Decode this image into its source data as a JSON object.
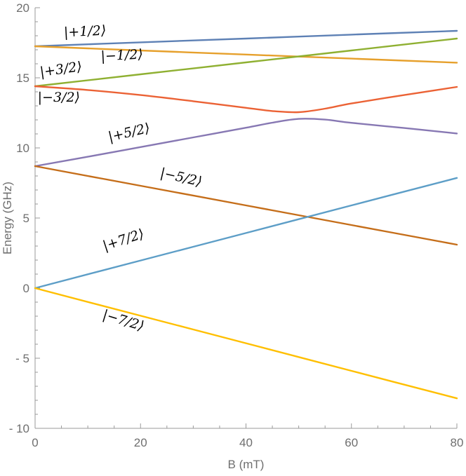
{
  "chart_data": {
    "type": "line",
    "title": "",
    "xlabel": "B (mT)",
    "ylabel": "Energy (GHz)",
    "xlim": [
      0,
      80
    ],
    "ylim": [
      -10,
      20
    ],
    "grid": false,
    "legend": "none",
    "x_ticks": [
      0,
      20,
      40,
      60,
      80
    ],
    "x_tick_labels": [
      "0",
      "20",
      "40",
      "60",
      "80"
    ],
    "y_ticks": [
      -10,
      -5,
      0,
      5,
      10,
      15,
      20
    ],
    "y_tick_labels": [
      "- 10",
      "- 5",
      "0",
      "5",
      "10",
      "15",
      "20"
    ],
    "series": [
      {
        "name": "|+1/2⟩",
        "color": "#5e81b5",
        "x": [
          0,
          20,
          40,
          60,
          80
        ],
        "y": [
          17.25,
          17.53,
          17.8,
          18.08,
          18.35
        ]
      },
      {
        "name": "|−1/2⟩",
        "color": "#e6a02c",
        "x": [
          0,
          20,
          40,
          60,
          80
        ],
        "y": [
          17.25,
          16.95,
          16.66,
          16.37,
          16.08
        ]
      },
      {
        "name": "|+3/2⟩",
        "color": "#8fb032",
        "x": [
          0,
          20,
          40,
          60,
          80
        ],
        "y": [
          14.4,
          15.25,
          16.1,
          16.95,
          17.8
        ]
      },
      {
        "name": "|−3/2⟩",
        "color": "#eb6235",
        "x": [
          0,
          10,
          20,
          30,
          40,
          45,
          50,
          55,
          60,
          70,
          80
        ],
        "y": [
          14.4,
          14.13,
          13.77,
          13.33,
          12.86,
          12.63,
          12.55,
          12.8,
          13.17,
          13.77,
          14.35
        ]
      },
      {
        "name": "|+5/2⟩",
        "color": "#8778b3",
        "x": [
          0,
          10,
          20,
          30,
          40,
          45,
          50,
          55,
          60,
          70,
          80
        ],
        "y": [
          8.7,
          9.37,
          10.06,
          10.75,
          11.44,
          11.8,
          12.07,
          12.02,
          11.79,
          11.42,
          11.03
        ]
      },
      {
        "name": "|−5/2⟩",
        "color": "#c56e1a",
        "x": [
          0,
          20,
          40,
          60,
          80
        ],
        "y": [
          8.7,
          7.3,
          5.9,
          4.5,
          3.1
        ]
      },
      {
        "name": "|+7/2⟩",
        "color": "#5d9ec7",
        "x": [
          0,
          20,
          40,
          60,
          80
        ],
        "y": [
          0,
          1.97,
          3.93,
          5.9,
          7.86
        ]
      },
      {
        "name": "|−7/2⟩",
        "color": "#ffbf00",
        "x": [
          0,
          20,
          40,
          60,
          80
        ],
        "y": [
          0,
          -1.97,
          -3.93,
          -5.9,
          -7.86
        ]
      }
    ],
    "annotations": [
      {
        "text": "|+1/2⟩",
        "x": 9.5,
        "y": 18.0,
        "rotate": -3
      },
      {
        "text": "|−1/2⟩",
        "x": 16.5,
        "y": 16.3,
        "rotate": -3
      },
      {
        "text": "|+3/2⟩",
        "x": 5.0,
        "y": 15.3,
        "rotate": -8
      },
      {
        "text": "|−3/2⟩",
        "x": 4.5,
        "y": 13.3,
        "rotate": 0
      },
      {
        "text": "|+5/2⟩",
        "x": 18.0,
        "y": 10.8,
        "rotate": -13
      },
      {
        "text": "|−5/2⟩",
        "x": 27.5,
        "y": 7.6,
        "rotate": 13
      },
      {
        "text": "|+7/2⟩",
        "x": 17.0,
        "y": 3.15,
        "rotate": -18
      },
      {
        "text": "|−7/2⟩",
        "x": 16.5,
        "y": -2.6,
        "rotate": 17
      }
    ]
  }
}
